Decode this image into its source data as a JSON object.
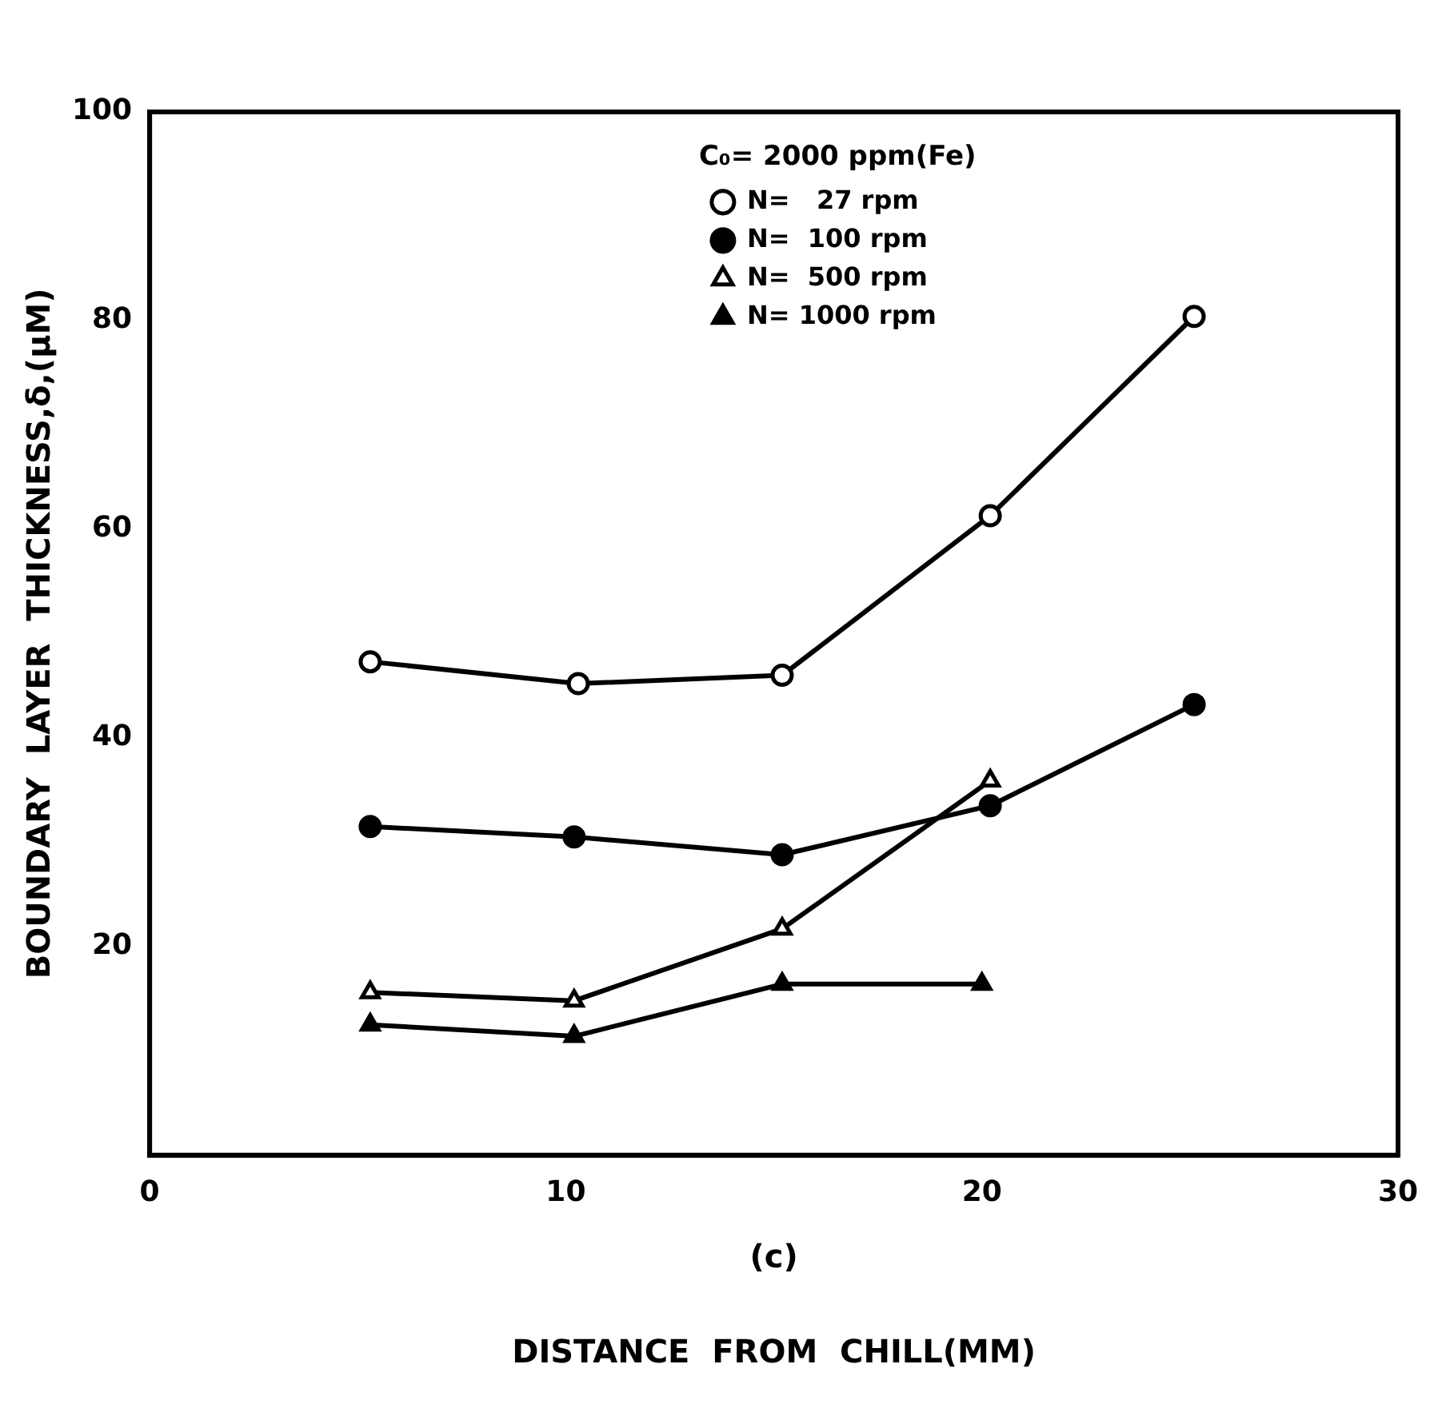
{
  "chart_data": {
    "type": "line",
    "xlabel": "DISTANCE  FROM  CHILL(MM)",
    "ylabel": "BOUNDARY  LAYER  THICKNESS,δ,(μM)",
    "legend_title": "C₀= 2000 ppm(Fe)",
    "annotations": [
      "(c)"
    ],
    "xlim": [
      0,
      30
    ],
    "xticks": [
      0,
      10,
      20,
      30
    ],
    "ylim": [
      0,
      100
    ],
    "yticks": [
      20,
      40,
      60,
      80,
      100
    ],
    "grid": false,
    "legend": "top right",
    "line_style": "solid",
    "series": [
      {
        "name": "N=   27 rpm",
        "color": "#000000",
        "marker": "circle",
        "x": [
          5.3,
          10.3,
          15.2,
          20.2,
          25.1
        ],
        "values": [
          47.3,
          45.2,
          46,
          61.3,
          80.4
        ]
      },
      {
        "name": "N=  100 rpm",
        "color": "#000000",
        "marker": "circle",
        "x": [
          5.3,
          10.2,
          15.2,
          20.2,
          25.1
        ],
        "values": [
          31.5,
          30.5,
          28.8,
          33.5,
          43.2
        ]
      },
      {
        "name": "N=  500 rpm",
        "color": "#000000",
        "marker": "triangle",
        "x": [
          5.3,
          10.2,
          15.2,
          20.2
        ],
        "values": [
          15.6,
          14.8,
          21.7,
          35.9
        ]
      },
      {
        "name": "N= 1000 rpm",
        "color": "#000000",
        "marker": "triangle",
        "x": [
          5.3,
          10.2,
          15.2,
          20
        ],
        "values": [
          12.5,
          11.4,
          16.4,
          16.4
        ]
      }
    ]
  }
}
